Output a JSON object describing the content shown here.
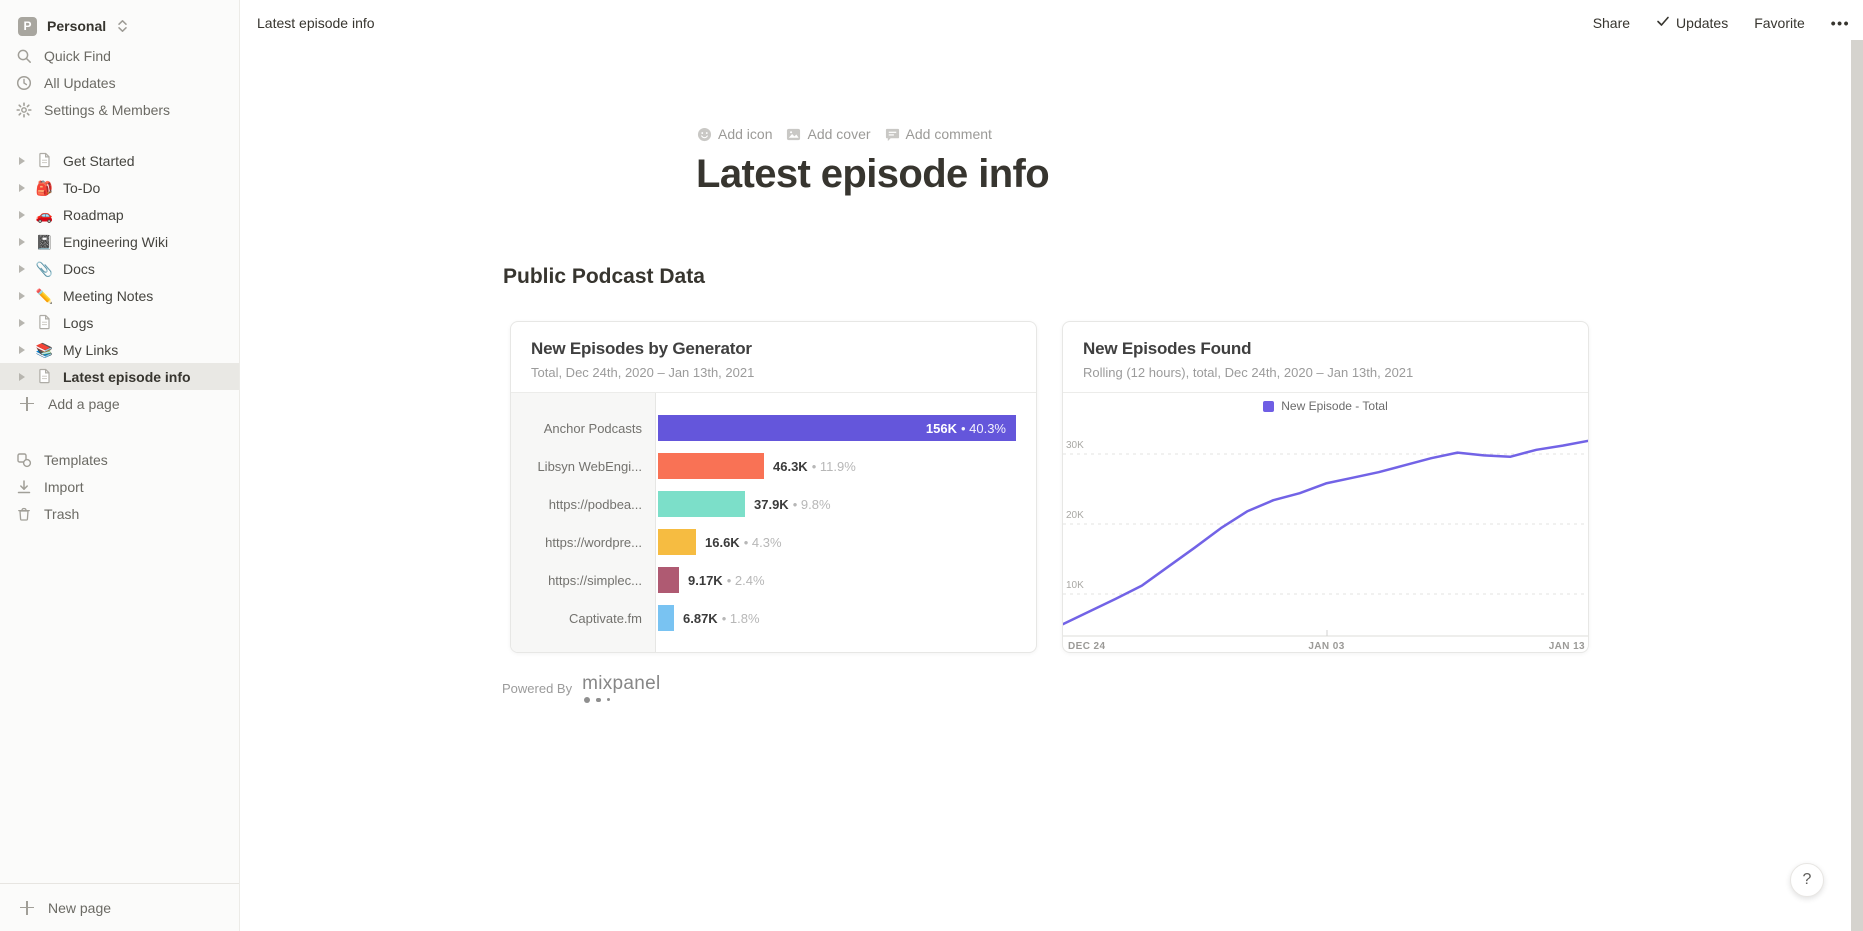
{
  "sidebar": {
    "workspace": {
      "initial": "P",
      "name": "Personal"
    },
    "top_items": [
      {
        "label": "Quick Find",
        "icon": "search-icon"
      },
      {
        "label": "All Updates",
        "icon": "clock-icon"
      },
      {
        "label": "Settings & Members",
        "icon": "gear-icon"
      }
    ],
    "pages": [
      {
        "label": "Get Started",
        "icon_type": "doc",
        "icon_name": "page-icon"
      },
      {
        "label": "To-Do",
        "icon_type": "emoji",
        "emoji": "🎒",
        "icon_name": "backpack-icon"
      },
      {
        "label": "Roadmap",
        "icon_type": "emoji",
        "emoji": "🚗",
        "icon_name": "car-icon"
      },
      {
        "label": "Engineering Wiki",
        "icon_type": "emoji",
        "emoji": "📓",
        "icon_name": "notebook-icon"
      },
      {
        "label": "Docs",
        "icon_type": "emoji",
        "emoji": "📎",
        "icon_name": "paperclip-icon"
      },
      {
        "label": "Meeting Notes",
        "icon_type": "emoji",
        "emoji": "✏️",
        "icon_name": "pencil-icon"
      },
      {
        "label": "Logs",
        "icon_type": "doc",
        "icon_name": "page-icon"
      },
      {
        "label": "My Links",
        "icon_type": "emoji",
        "emoji": "📚",
        "icon_name": "books-icon"
      },
      {
        "label": "Latest episode info",
        "icon_type": "doc",
        "icon_name": "page-icon",
        "selected": true
      }
    ],
    "add_page_label": "Add a page",
    "secondary_items": [
      {
        "label": "Templates",
        "icon": "templates-icon"
      },
      {
        "label": "Import",
        "icon": "import-icon"
      },
      {
        "label": "Trash",
        "icon": "trash-icon"
      }
    ],
    "new_page_label": "New page"
  },
  "topbar": {
    "breadcrumb": "Latest episode info",
    "share_label": "Share",
    "updates_label": "Updates",
    "favorite_label": "Favorite",
    "more_label": "•••"
  },
  "page": {
    "controls": [
      {
        "label": "Add icon"
      },
      {
        "label": "Add cover"
      },
      {
        "label": "Add comment"
      }
    ],
    "title": "Latest episode info",
    "section_heading": "Public Podcast Data",
    "powered_by_label": "Powered By",
    "brand_name": "mixpanel"
  },
  "help_label": "?",
  "chart_data": [
    {
      "type": "bar",
      "orientation": "horizontal",
      "title": "New Episodes by Generator",
      "subtitle": "Total, Dec 24th, 2020 – Jan 13th, 2021",
      "categories": [
        "Anchor Podcasts",
        "Libsyn WebEngi...",
        "https://podbea...",
        "https://wordpre...",
        "https://simplec...",
        "Captivate.fm"
      ],
      "values": [
        156000,
        46300,
        37900,
        16600,
        9170,
        6870
      ],
      "value_labels": [
        "156K",
        "46.3K",
        "37.9K",
        "16.6K",
        "9.17K",
        "6.87K"
      ],
      "percent_labels": [
        "40.3%",
        "11.9%",
        "9.8%",
        "4.3%",
        "2.4%",
        "1.8%"
      ],
      "colors": [
        "#6456DB",
        "#F97255",
        "#7CDFC9",
        "#F6BC41",
        "#AF5A72",
        "#79C3F2"
      ],
      "xlim": [
        0,
        156000
      ],
      "separator": "•"
    },
    {
      "type": "line",
      "title": "New Episodes Found",
      "subtitle": "Rolling (12 hours), total, Dec 24th, 2020 – Jan 13th, 2021",
      "legend": [
        {
          "label": "New Episode - Total",
          "color": "#6F5EE4"
        }
      ],
      "line_color": "#7263E6",
      "x_tick_labels": [
        "DEC 24",
        "JAN 03",
        "JAN 13"
      ],
      "y_ticks": [
        10000,
        20000,
        30000
      ],
      "y_tick_labels": [
        "10K",
        "20K",
        "30K"
      ],
      "ylim": [
        0,
        35000
      ],
      "grid": "dashed-horizontal",
      "legend_position": "top-center",
      "values": [
        5700,
        7500,
        9300,
        11200,
        13900,
        16600,
        19400,
        21800,
        23400,
        24400,
        25800,
        26600,
        27400,
        28400,
        29400,
        30200,
        29800,
        29600,
        30600,
        31200,
        31900
      ]
    }
  ]
}
